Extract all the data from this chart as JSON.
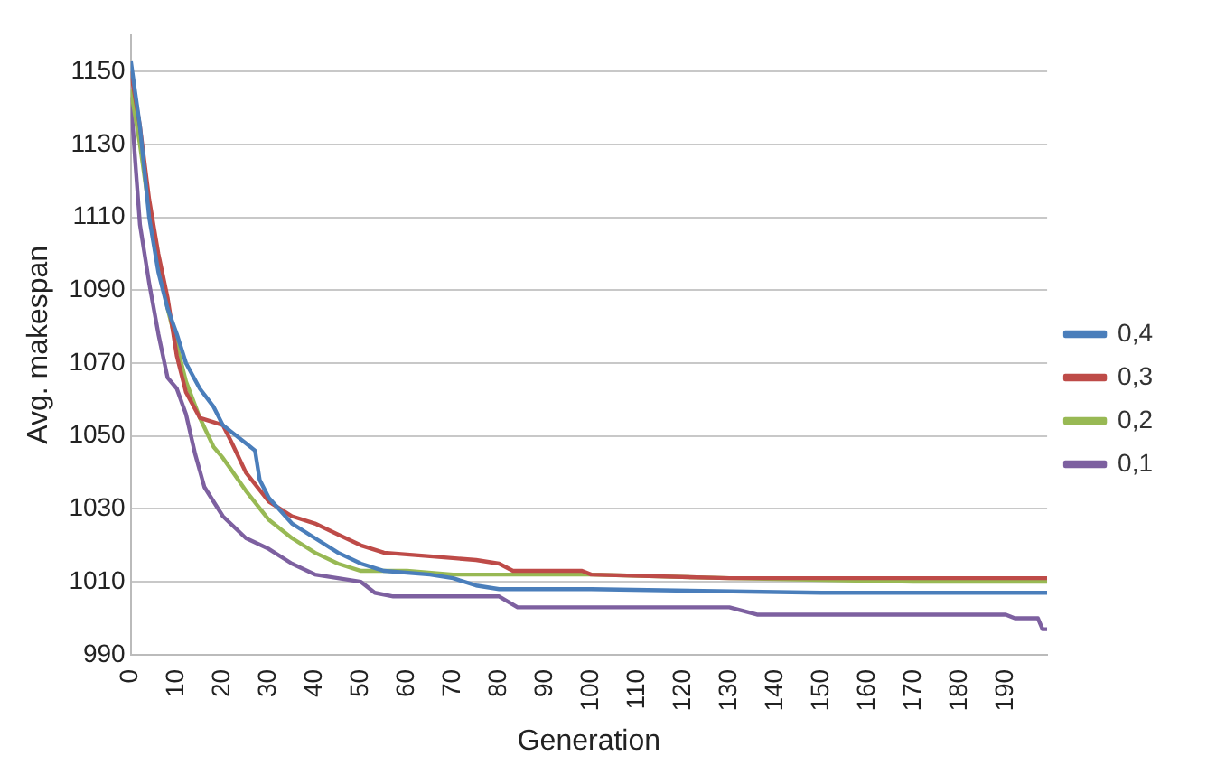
{
  "chart_data": {
    "type": "line",
    "xlabel": "Generation",
    "ylabel": "Avg. makespan",
    "xlim": [
      0,
      199
    ],
    "xticks": [
      0,
      10,
      20,
      30,
      40,
      50,
      60,
      70,
      80,
      90,
      100,
      110,
      120,
      130,
      140,
      150,
      160,
      170,
      180,
      190
    ],
    "ylim": [
      990,
      1160
    ],
    "yticks": [
      990,
      1010,
      1030,
      1050,
      1070,
      1090,
      1110,
      1130,
      1150
    ],
    "grid": "y",
    "legend": "right",
    "marker": "none",
    "line_style": "solid",
    "series": [
      {
        "name": "0,4",
        "color": "#4a7ebb",
        "x": [
          0,
          2,
          4,
          6,
          8,
          10,
          12,
          15,
          18,
          20,
          25,
          27,
          28,
          30,
          35,
          40,
          45,
          50,
          55,
          65,
          70,
          75,
          80,
          100,
          150,
          199
        ],
        "values": [
          1153,
          1135,
          1110,
          1095,
          1085,
          1078,
          1070,
          1063,
          1058,
          1053,
          1048,
          1046,
          1038,
          1033,
          1026,
          1022,
          1018,
          1015,
          1013,
          1012,
          1011,
          1009,
          1008,
          1008,
          1007,
          1007
        ]
      },
      {
        "name": "0,3",
        "color": "#be4b48",
        "x": [
          0,
          2,
          4,
          6,
          8,
          10,
          12,
          15,
          20,
          22,
          25,
          30,
          35,
          40,
          45,
          50,
          55,
          65,
          75,
          80,
          83,
          98,
          100,
          130,
          199
        ],
        "values": [
          1150,
          1135,
          1115,
          1100,
          1088,
          1072,
          1062,
          1055,
          1053,
          1048,
          1040,
          1032,
          1028,
          1026,
          1023,
          1020,
          1018,
          1017,
          1016,
          1015,
          1013,
          1013,
          1012,
          1011,
          1011
        ]
      },
      {
        "name": "0,2",
        "color": "#98b954",
        "x": [
          0,
          2,
          4,
          6,
          8,
          10,
          12,
          15,
          18,
          20,
          25,
          30,
          35,
          40,
          45,
          50,
          60,
          70,
          100,
          130,
          170,
          199
        ],
        "values": [
          1145,
          1130,
          1112,
          1098,
          1085,
          1075,
          1065,
          1055,
          1047,
          1044,
          1035,
          1027,
          1022,
          1018,
          1015,
          1013,
          1013,
          1012,
          1012,
          1011,
          1010,
          1010
        ]
      },
      {
        "name": "0,1",
        "color": "#7d60a0",
        "x": [
          0,
          1,
          2,
          4,
          6,
          8,
          10,
          12,
          14,
          16,
          20,
          25,
          30,
          35,
          40,
          45,
          50,
          53,
          57,
          80,
          84,
          130,
          136,
          190,
          192,
          197,
          198,
          199
        ],
        "values": [
          1143,
          1125,
          1108,
          1092,
          1078,
          1066,
          1063,
          1056,
          1045,
          1036,
          1028,
          1022,
          1019,
          1015,
          1012,
          1011,
          1010,
          1007,
          1006,
          1006,
          1003,
          1003,
          1001,
          1001,
          1000,
          1000,
          997,
          997
        ]
      }
    ]
  }
}
